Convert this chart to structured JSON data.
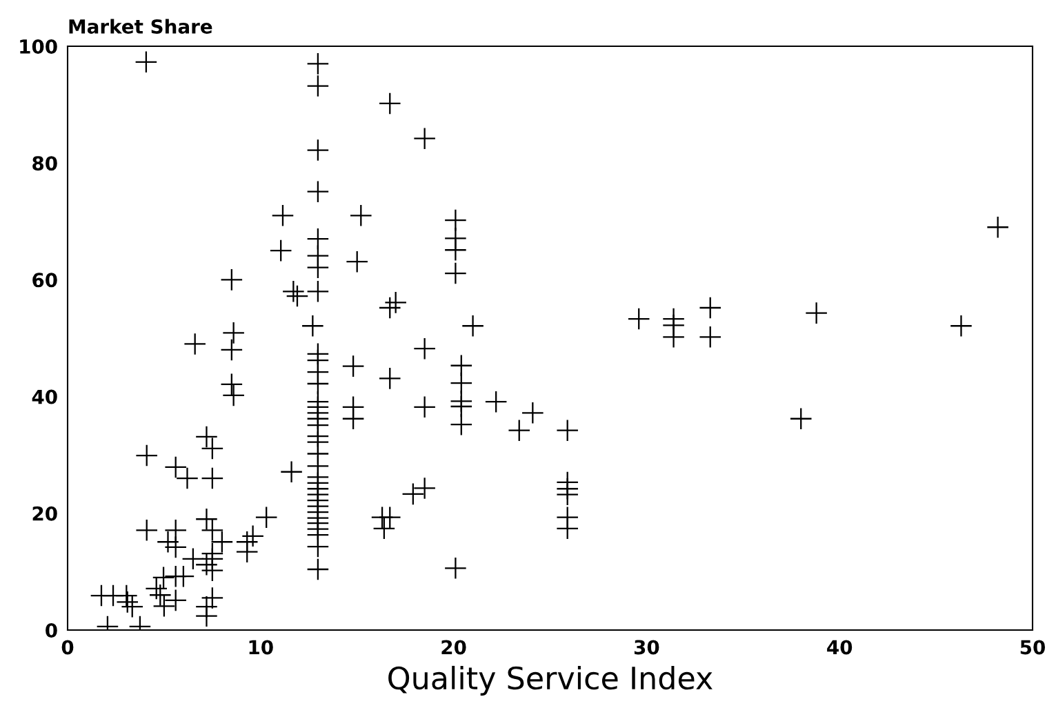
{
  "chart_data": {
    "type": "scatter",
    "ylabel": "Market Share",
    "xlabel": "Quality Service Index",
    "xlim": [
      0,
      50
    ],
    "xticks": [
      0,
      10,
      20,
      30,
      40,
      50
    ],
    "ylim": [
      0,
      100
    ],
    "yticks": [
      0,
      20,
      40,
      60,
      80,
      100
    ],
    "grid": false,
    "marker": "cross",
    "series": [
      {
        "color": "#000000",
        "x": [
          4.07,
          1.75,
          2.36,
          3.05,
          3.1,
          3.35,
          2.07,
          3.75,
          4.97,
          4.6,
          4.8,
          5.0,
          5.6,
          6.0,
          5.6,
          4.1,
          5.6,
          5.2,
          5.6,
          6.5,
          7.2,
          7.5,
          8.0,
          9.3,
          9.6,
          9.3,
          7.5,
          7.5,
          7.2,
          7.5,
          7.5,
          7.2,
          7.2,
          4.1,
          5.6,
          6.2,
          7.5,
          7.2,
          7.5,
          6.6,
          8.6,
          8.5,
          8.5,
          8.6,
          8.5,
          12.97,
          12.97,
          12.97,
          12.97,
          12.97,
          12.97,
          12.97,
          12.97,
          11.15,
          11.05,
          15.2,
          15.0,
          16.7,
          18.5,
          11.7,
          11.9,
          16.7,
          17.0,
          20.1,
          20.1,
          20.1,
          20.1,
          12.7,
          12.97,
          12.97,
          12.97,
          12.97,
          12.97,
          12.97,
          12.97,
          12.97,
          12.97,
          12.97,
          12.97,
          12.97,
          12.97,
          12.97,
          12.97,
          12.97,
          12.97,
          12.97,
          12.97,
          12.97,
          12.97,
          12.97,
          12.97,
          12.97,
          12.97,
          12.97,
          14.8,
          16.7,
          18.5,
          14.8,
          14.8,
          18.5,
          20.4,
          20.4,
          20.4,
          20.4,
          20.4,
          11.6,
          10.3,
          17.9,
          18.5,
          16.3,
          16.7,
          16.4,
          20.1,
          21.0,
          22.2,
          23.4,
          24.1,
          25.9,
          25.9,
          25.9,
          25.9,
          25.9,
          25.9,
          29.6,
          31.4,
          31.4,
          31.4,
          33.3,
          33.3,
          38.8,
          38.0,
          46.3,
          48.2
        ],
        "values": [
          97.3,
          5.9,
          5.9,
          5.9,
          4.8,
          4.0,
          0.6,
          0.6,
          9.0,
          7.1,
          6.0,
          4.1,
          5.1,
          9.2,
          9.2,
          17.1,
          17.1,
          15.1,
          14.2,
          12.2,
          19.0,
          17.1,
          15.1,
          15.1,
          16.1,
          13.4,
          13.1,
          12.2,
          11.2,
          10.2,
          5.5,
          4.0,
          2.4,
          29.9,
          27.9,
          26.0,
          26.0,
          33.1,
          31.1,
          49.0,
          50.9,
          48.0,
          42.1,
          40.2,
          60.0,
          97.0,
          93.2,
          82.2,
          75.1,
          67.0,
          64.1,
          62.1,
          58.0,
          71.0,
          65.0,
          71.0,
          63.1,
          90.2,
          84.2,
          58.0,
          57.2,
          55.2,
          56.1,
          70.2,
          67.1,
          65.1,
          61.1,
          52.1,
          47.3,
          46.2,
          44.2,
          42.2,
          39.1,
          38.2,
          37.2,
          36.2,
          35.1,
          33.2,
          32.2,
          30.2,
          28.1,
          26.2,
          25.2,
          24.2,
          23.2,
          22.2,
          21.2,
          20.2,
          19.2,
          18.3,
          17.3,
          16.3,
          14.3,
          10.4,
          45.2,
          43.1,
          48.2,
          38.2,
          36.2,
          38.2,
          45.3,
          42.3,
          39.2,
          38.3,
          35.2,
          27.1,
          19.3,
          23.3,
          24.3,
          19.3,
          19.3,
          17.4,
          10.6,
          52.1,
          39.1,
          34.2,
          37.2,
          34.2,
          25.3,
          24.2,
          23.2,
          19.3,
          17.4,
          53.3,
          53.3,
          52.2,
          50.2,
          55.2,
          50.2,
          54.3,
          36.2,
          52.1,
          69.0
        ]
      }
    ]
  }
}
